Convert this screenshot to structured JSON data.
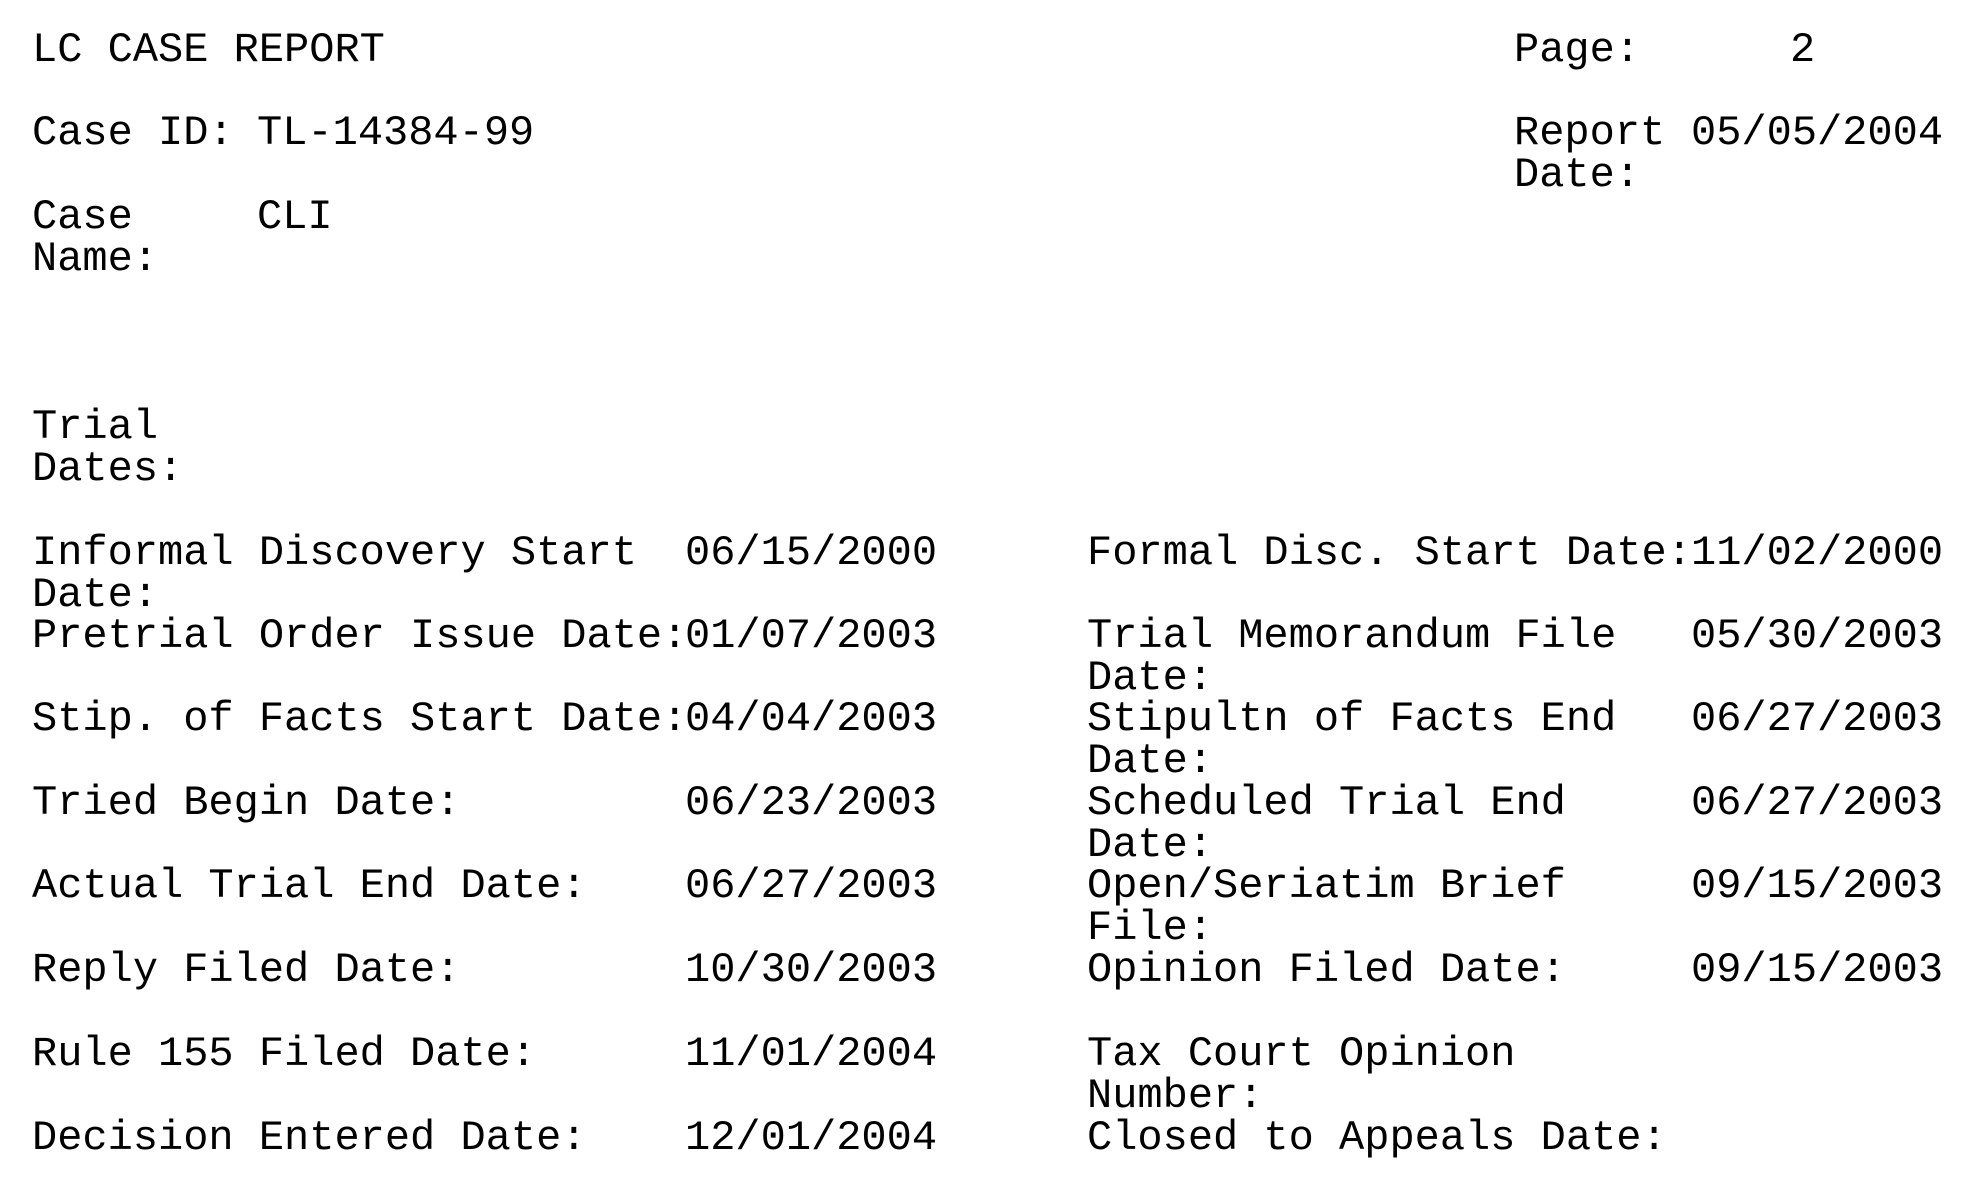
{
  "header": {
    "title": "LC CASE REPORT",
    "page_label": "Page:",
    "page_value": "2",
    "case_id_label": "Case ID:",
    "case_id_value": "TL-14384-99",
    "report_date_label": "Report Date:",
    "report_date_value": "05/05/2004",
    "case_name_label": "Case Name:",
    "case_name_value": "CLI"
  },
  "section_title": "Trial Dates:",
  "rows": [
    {
      "left_label": "Informal Discovery Start Date:",
      "left_value": "06/15/2000",
      "right_label": "Formal Disc. Start Date:",
      "right_value": "11/02/2000"
    },
    {
      "left_label": "Pretrial Order Issue Date:",
      "left_value": "01/07/2003",
      "right_label": "Trial Memorandum File Date:",
      "right_value": "05/30/2003"
    },
    {
      "left_label": "Stip. of Facts Start Date:",
      "left_value": "04/04/2003",
      "right_label": "Stipultn of Facts End Date:",
      "right_value": "06/27/2003"
    },
    {
      "left_label": "Tried Begin Date:",
      "left_value": "06/23/2003",
      "right_label": "Scheduled Trial End Date:",
      "right_value": "06/27/2003"
    },
    {
      "left_label": "Actual Trial End Date:",
      "left_value": "06/27/2003",
      "right_label": "Open/Seriatim Brief File:",
      "right_value": "09/15/2003"
    },
    {
      "left_label": "Reply Filed Date:",
      "left_value": "10/30/2003",
      "right_label": "Opinion Filed Date:",
      "right_value": "09/15/2003"
    },
    {
      "left_label": "Rule 155 Filed Date:",
      "left_value": "11/01/2004",
      "right_label": "Tax Court Opinion Number:",
      "right_value": ""
    },
    {
      "left_label": "Decision Entered Date:",
      "left_value": "12/01/2004",
      "right_label": "Closed to Appeals Date:",
      "right_value": ""
    }
  ]
}
